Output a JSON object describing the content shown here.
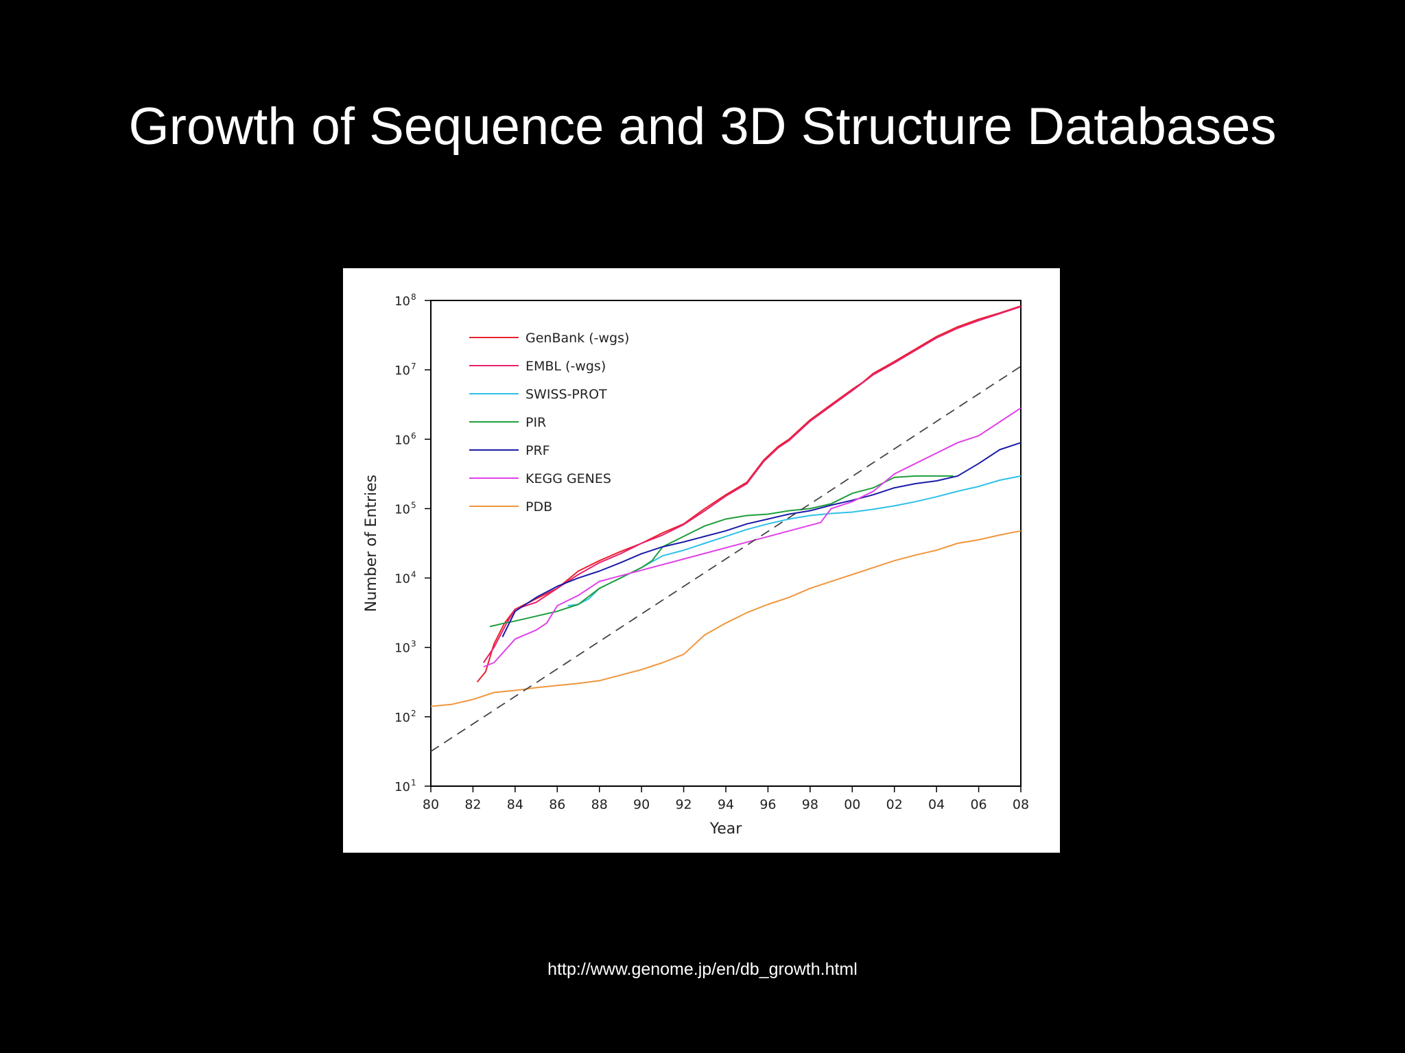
{
  "slide": {
    "title": "Growth of Sequence and 3D Structure Databases",
    "source_url": "http://www.genome.jp/en/db_growth.html"
  },
  "chart_data": {
    "type": "line",
    "title": "",
    "xlabel": "Year",
    "ylabel": "Number of Entries",
    "y_scale": "log10",
    "xlim": [
      1980,
      2008
    ],
    "ylim_log10": [
      1,
      8
    ],
    "x_ticks": [
      {
        "value": 1980,
        "label": "80"
      },
      {
        "value": 1982,
        "label": "82"
      },
      {
        "value": 1984,
        "label": "84"
      },
      {
        "value": 1986,
        "label": "86"
      },
      {
        "value": 1988,
        "label": "88"
      },
      {
        "value": 1990,
        "label": "90"
      },
      {
        "value": 1992,
        "label": "92"
      },
      {
        "value": 1994,
        "label": "94"
      },
      {
        "value": 1996,
        "label": "96"
      },
      {
        "value": 1998,
        "label": "98"
      },
      {
        "value": 2000,
        "label": "00"
      },
      {
        "value": 2002,
        "label": "02"
      },
      {
        "value": 2004,
        "label": "04"
      },
      {
        "value": 2006,
        "label": "06"
      },
      {
        "value": 2008,
        "label": "08"
      }
    ],
    "y_ticks": [
      {
        "exp": 1,
        "label": "10",
        "sup": "1"
      },
      {
        "exp": 2,
        "label": "10",
        "sup": "2"
      },
      {
        "exp": 3,
        "label": "10",
        "sup": "3"
      },
      {
        "exp": 4,
        "label": "10",
        "sup": "4"
      },
      {
        "exp": 5,
        "label": "10",
        "sup": "5"
      },
      {
        "exp": 6,
        "label": "10",
        "sup": "6"
      },
      {
        "exp": 7,
        "label": "10",
        "sup": "7"
      },
      {
        "exp": 8,
        "label": "10",
        "sup": "8"
      }
    ],
    "grid": false,
    "legend_position": "top-left",
    "series": [
      {
        "name": "GenBank (-wgs)",
        "color": "#e8202a",
        "points": [
          [
            1982.2,
            2.5
          ],
          [
            1982.6,
            2.65
          ],
          [
            1983.0,
            3.05
          ],
          [
            1983.5,
            3.35
          ],
          [
            1984.0,
            3.55
          ],
          [
            1985.0,
            3.7
          ],
          [
            1986.0,
            3.85
          ],
          [
            1987.0,
            4.1
          ],
          [
            1988.0,
            4.25
          ],
          [
            1989.0,
            4.38
          ],
          [
            1990.0,
            4.5
          ],
          [
            1991.0,
            4.65
          ],
          [
            1992.0,
            4.78
          ],
          [
            1993.0,
            5.0
          ],
          [
            1994.0,
            5.2
          ],
          [
            1995.0,
            5.38
          ],
          [
            1995.8,
            5.7
          ],
          [
            1996.5,
            5.9
          ],
          [
            1997.0,
            6.0
          ],
          [
            1998.0,
            6.28
          ],
          [
            1999.0,
            6.5
          ],
          [
            2000.0,
            6.72
          ],
          [
            2000.5,
            6.82
          ],
          [
            2001.0,
            6.95
          ],
          [
            2002.0,
            7.12
          ],
          [
            2003.0,
            7.3
          ],
          [
            2004.0,
            7.48
          ],
          [
            2005.0,
            7.62
          ],
          [
            2006.0,
            7.73
          ],
          [
            2007.0,
            7.82
          ],
          [
            2008.0,
            7.92
          ]
        ]
      },
      {
        "name": "EMBL (-wgs)",
        "color": "#e8206e",
        "points": [
          [
            1982.5,
            2.78
          ],
          [
            1983.0,
            3.0
          ],
          [
            1983.6,
            3.35
          ],
          [
            1984.0,
            3.55
          ],
          [
            1985.0,
            3.65
          ],
          [
            1986.0,
            3.85
          ],
          [
            1987.0,
            4.05
          ],
          [
            1988.0,
            4.22
          ],
          [
            1989.0,
            4.35
          ],
          [
            1990.0,
            4.5
          ],
          [
            1991.0,
            4.62
          ],
          [
            1992.0,
            4.77
          ],
          [
            1993.0,
            4.97
          ],
          [
            1994.0,
            5.18
          ],
          [
            1995.0,
            5.36
          ],
          [
            1995.8,
            5.68
          ],
          [
            1996.5,
            5.88
          ],
          [
            1997.0,
            5.98
          ],
          [
            1998.0,
            6.26
          ],
          [
            1999.0,
            6.48
          ],
          [
            2000.0,
            6.7
          ],
          [
            2001.0,
            6.93
          ],
          [
            2002.0,
            7.1
          ],
          [
            2003.0,
            7.28
          ],
          [
            2004.0,
            7.46
          ],
          [
            2005.0,
            7.6
          ],
          [
            2006.0,
            7.71
          ],
          [
            2007.0,
            7.81
          ],
          [
            2008.0,
            7.91
          ]
        ]
      },
      {
        "name": "SWISS-PROT",
        "color": "#2ec0e8",
        "points": [
          [
            1986.5,
            3.6
          ],
          [
            1987.0,
            3.62
          ],
          [
            1987.5,
            3.7
          ],
          [
            1988.0,
            3.85
          ],
          [
            1989.0,
            4.0
          ],
          [
            1990.0,
            4.15
          ],
          [
            1991.0,
            4.32
          ],
          [
            1992.0,
            4.4
          ],
          [
            1993.0,
            4.5
          ],
          [
            1994.0,
            4.6
          ],
          [
            1995.0,
            4.7
          ],
          [
            1996.0,
            4.78
          ],
          [
            1997.0,
            4.85
          ],
          [
            1998.0,
            4.9
          ],
          [
            1999.0,
            4.93
          ],
          [
            2000.0,
            4.95
          ],
          [
            2001.0,
            4.99
          ],
          [
            2002.0,
            5.04
          ],
          [
            2003.0,
            5.1
          ],
          [
            2004.0,
            5.17
          ],
          [
            2005.0,
            5.25
          ],
          [
            2006.0,
            5.32
          ],
          [
            2007.0,
            5.41
          ],
          [
            2008.0,
            5.47
          ]
        ]
      },
      {
        "name": "PIR",
        "color": "#1e9e3c",
        "points": [
          [
            1982.8,
            3.3
          ],
          [
            1983.5,
            3.35
          ],
          [
            1984.0,
            3.38
          ],
          [
            1985.0,
            3.45
          ],
          [
            1986.0,
            3.52
          ],
          [
            1987.0,
            3.62
          ],
          [
            1988.0,
            3.85
          ],
          [
            1989.0,
            4.0
          ],
          [
            1990.0,
            4.15
          ],
          [
            1990.5,
            4.25
          ],
          [
            1991.0,
            4.45
          ],
          [
            1992.0,
            4.6
          ],
          [
            1993.0,
            4.75
          ],
          [
            1994.0,
            4.85
          ],
          [
            1995.0,
            4.9
          ],
          [
            1996.0,
            4.92
          ],
          [
            1997.0,
            4.97
          ],
          [
            1998.0,
            5.0
          ],
          [
            1999.0,
            5.07
          ],
          [
            2000.0,
            5.22
          ],
          [
            2001.0,
            5.3
          ],
          [
            2002.0,
            5.45
          ],
          [
            2003.0,
            5.47
          ],
          [
            2004.0,
            5.47
          ],
          [
            2004.8,
            5.47
          ]
        ]
      },
      {
        "name": "PRF",
        "color": "#1a1aa8",
        "points": [
          [
            1983.4,
            3.15
          ],
          [
            1984.0,
            3.52
          ],
          [
            1985.0,
            3.72
          ],
          [
            1986.0,
            3.88
          ],
          [
            1987.0,
            4.0
          ],
          [
            1988.0,
            4.1
          ],
          [
            1989.0,
            4.22
          ],
          [
            1990.0,
            4.35
          ],
          [
            1991.0,
            4.45
          ],
          [
            1992.0,
            4.52
          ],
          [
            1993.0,
            4.6
          ],
          [
            1994.0,
            4.68
          ],
          [
            1995.0,
            4.78
          ],
          [
            1996.0,
            4.85
          ],
          [
            1997.0,
            4.92
          ],
          [
            1998.0,
            4.97
          ],
          [
            1999.0,
            5.05
          ],
          [
            2000.0,
            5.12
          ],
          [
            2001.0,
            5.2
          ],
          [
            2002.0,
            5.3
          ],
          [
            2003.0,
            5.36
          ],
          [
            2004.0,
            5.4
          ],
          [
            2005.0,
            5.47
          ],
          [
            2006.0,
            5.65
          ],
          [
            2007.0,
            5.85
          ],
          [
            2008.0,
            5.95
          ]
        ]
      },
      {
        "name": "KEGG GENES",
        "color": "#e040e8",
        "points": [
          [
            1982.5,
            2.72
          ],
          [
            1983.0,
            2.78
          ],
          [
            1984.0,
            3.12
          ],
          [
            1985.0,
            3.25
          ],
          [
            1985.5,
            3.35
          ],
          [
            1986.0,
            3.6
          ],
          [
            1987.0,
            3.75
          ],
          [
            1988.0,
            3.95
          ],
          [
            1998.5,
            4.8
          ],
          [
            1999.0,
            5.0
          ],
          [
            2000.0,
            5.1
          ],
          [
            2001.0,
            5.25
          ],
          [
            2002.0,
            5.5
          ],
          [
            2003.0,
            5.65
          ],
          [
            2004.0,
            5.8
          ],
          [
            2005.0,
            5.95
          ],
          [
            2006.0,
            6.05
          ],
          [
            2007.0,
            6.25
          ],
          [
            2008.0,
            6.45
          ]
        ]
      },
      {
        "name": "PDB",
        "color": "#f0963c",
        "points": [
          [
            1980.0,
            2.15
          ],
          [
            1981.0,
            2.18
          ],
          [
            1982.0,
            2.25
          ],
          [
            1983.0,
            2.35
          ],
          [
            1984.0,
            2.38
          ],
          [
            1985.0,
            2.42
          ],
          [
            1986.0,
            2.45
          ],
          [
            1987.0,
            2.48
          ],
          [
            1988.0,
            2.52
          ],
          [
            1989.0,
            2.6
          ],
          [
            1990.0,
            2.68
          ],
          [
            1991.0,
            2.78
          ],
          [
            1992.0,
            2.9
          ],
          [
            1993.0,
            3.18
          ],
          [
            1994.0,
            3.35
          ],
          [
            1995.0,
            3.5
          ],
          [
            1996.0,
            3.62
          ],
          [
            1997.0,
            3.72
          ],
          [
            1998.0,
            3.85
          ],
          [
            1999.0,
            3.95
          ],
          [
            2000.0,
            4.05
          ],
          [
            2001.0,
            4.15
          ],
          [
            2002.0,
            4.25
          ],
          [
            2003.0,
            4.33
          ],
          [
            2004.0,
            4.4
          ],
          [
            2005.0,
            4.5
          ],
          [
            2006.0,
            4.55
          ],
          [
            2007.0,
            4.62
          ],
          [
            2008.0,
            4.68
          ]
        ]
      },
      {
        "name": "trend (dashed)",
        "color": "#444444",
        "dashed": true,
        "in_legend": false,
        "points": [
          [
            1980.0,
            1.5
          ],
          [
            2008.0,
            7.05
          ]
        ]
      }
    ]
  }
}
